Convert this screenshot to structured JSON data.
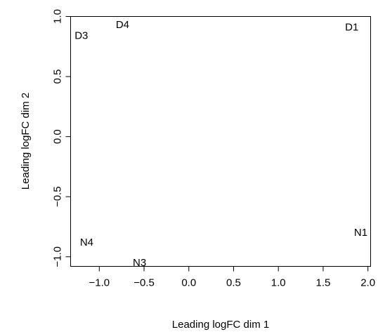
{
  "chart_data": {
    "type": "scatter",
    "title": "",
    "xlabel": "Leading logFC dim 1",
    "ylabel": "Leading logFC dim 2",
    "xlim": [
      -1.32,
      2.03
    ],
    "ylim": [
      -1.08,
      1.0
    ],
    "xticks": [
      -1.0,
      -0.5,
      0.0,
      0.5,
      1.0,
      1.5,
      2.0
    ],
    "xtick_labels": [
      "−1.0",
      "−0.5",
      "0.0",
      "0.5",
      "1.0",
      "1.5",
      "2.0"
    ],
    "yticks": [
      -1.0,
      -0.5,
      0.0,
      0.5,
      1.0
    ],
    "ytick_labels": [
      "−1.0",
      "−0.5",
      "0.0",
      "0.5",
      "1.0"
    ],
    "grid": false,
    "marker": "text-label",
    "points": [
      {
        "label": "D1",
        "x": 1.82,
        "y": 0.91
      },
      {
        "label": "D3",
        "x": -1.2,
        "y": 0.84
      },
      {
        "label": "D4",
        "x": -0.74,
        "y": 0.93
      },
      {
        "label": "N1",
        "x": 1.92,
        "y": -0.8
      },
      {
        "label": "N3",
        "x": -0.55,
        "y": -1.05
      },
      {
        "label": "N4",
        "x": -1.14,
        "y": -0.88
      }
    ]
  }
}
